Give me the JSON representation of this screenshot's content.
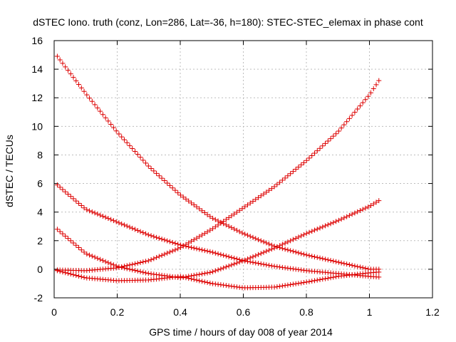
{
  "chart_data": {
    "type": "scatter",
    "title": "dSTEC Iono. truth (conz, Lon=286, Lat=-36, h=180): STEC-STEC_elemax in phase cont",
    "xlabel": "GPS time / hours of day 008 of year 2014",
    "ylabel": "dSTEC  / TECUs",
    "xlim": [
      0,
      1.2
    ],
    "ylim": [
      -2,
      16
    ],
    "x_ticks": [
      "0",
      "0.2",
      "0.4",
      "0.6",
      "0.8",
      "1",
      "1.2"
    ],
    "y_ticks": [
      "-2",
      "0",
      "2",
      "4",
      "6",
      "8",
      "10",
      "12",
      "14",
      "16"
    ],
    "grid": true,
    "marker": "+",
    "color": "#dd0000",
    "series": [
      {
        "x": [
          0.01,
          0.1,
          0.2,
          0.3,
          0.4,
          0.5,
          0.6,
          0.7,
          0.8,
          0.9,
          1.0,
          1.03
        ],
        "y": [
          14.9,
          12.3,
          9.6,
          7.2,
          5.2,
          3.6,
          2.5,
          1.6,
          1.0,
          0.5,
          0.0,
          0.0
        ]
      },
      {
        "x": [
          0.01,
          0.1,
          0.2,
          0.3,
          0.4,
          0.5,
          0.6,
          0.7,
          0.8,
          0.9,
          1.0,
          1.03
        ],
        "y": [
          -0.05,
          -0.1,
          0.1,
          0.6,
          1.5,
          2.8,
          4.3,
          5.8,
          7.6,
          9.6,
          12.2,
          13.2
        ]
      },
      {
        "x": [
          0.01,
          0.1,
          0.2,
          0.3,
          0.4,
          0.5,
          0.6,
          0.7,
          0.8,
          0.9,
          1.0,
          1.03
        ],
        "y": [
          5.9,
          4.2,
          3.3,
          2.4,
          1.7,
          1.2,
          0.6,
          0.2,
          -0.1,
          -0.3,
          -0.5,
          -0.55
        ]
      },
      {
        "x": [
          0.01,
          0.1,
          0.2,
          0.3,
          0.4,
          0.5,
          0.6,
          0.7,
          0.8,
          0.9,
          1.0,
          1.03
        ],
        "y": [
          2.8,
          1.1,
          0.2,
          -0.3,
          -0.6,
          -0.2,
          0.6,
          1.5,
          2.5,
          3.4,
          4.4,
          4.8
        ]
      },
      {
        "x": [
          0.01,
          0.1,
          0.2,
          0.3,
          0.4,
          0.5,
          0.6,
          0.7,
          0.8,
          0.9,
          1.0,
          1.03
        ],
        "y": [
          -0.1,
          -0.6,
          -0.8,
          -0.75,
          -0.5,
          -1.0,
          -1.3,
          -1.25,
          -0.9,
          -0.5,
          -0.25,
          -0.2
        ]
      }
    ]
  }
}
